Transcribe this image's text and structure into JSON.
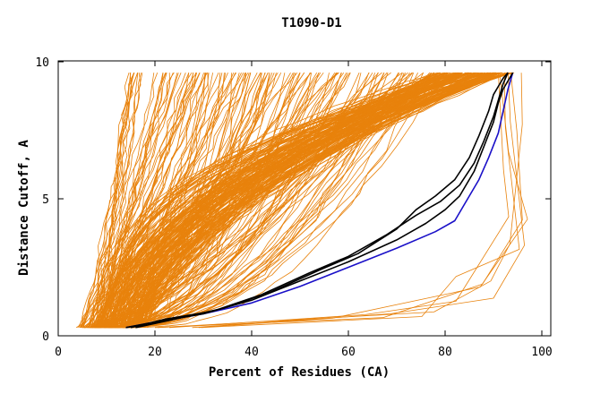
{
  "chart_data": {
    "type": "line",
    "title": "T1090-D1",
    "xlabel": "Percent of Residues (CA)",
    "ylabel": "Distance Cutoff, A",
    "xlim": [
      0,
      100
    ],
    "ylim": [
      0,
      10
    ],
    "x_ticks": [
      "0",
      "20",
      "40",
      "60",
      "80",
      "100"
    ],
    "y_ticks": [
      "0",
      "5",
      "10"
    ],
    "grid": false,
    "legend": "none",
    "colors": {
      "models": "#E8820C",
      "highlight_black": "#000000",
      "highlight_blue": "#1A10C8"
    },
    "series": [
      {
        "color": "#1A10C8",
        "x": [
          14,
          20,
          30,
          40,
          50,
          60,
          70,
          78,
          82,
          84,
          87,
          89,
          91,
          92,
          93,
          94
        ],
        "y": [
          0.3,
          0.5,
          0.8,
          1.2,
          1.8,
          2.5,
          3.2,
          3.8,
          4.2,
          4.8,
          5.7,
          6.5,
          7.4,
          8.2,
          9.0,
          9.6
        ]
      },
      {
        "color": "#000000",
        "x": [
          14,
          20,
          30,
          40,
          50,
          60,
          70,
          76,
          80,
          83,
          86,
          88,
          90,
          91,
          92,
          93,
          94
        ],
        "y": [
          0.3,
          0.5,
          0.8,
          1.3,
          2.0,
          2.7,
          3.5,
          4.1,
          4.6,
          5.1,
          6.0,
          6.9,
          7.8,
          8.5,
          9.0,
          9.3,
          9.6
        ]
      },
      {
        "color": "#000000",
        "x": [
          15,
          22,
          32,
          42,
          52,
          60,
          68,
          74,
          79,
          83,
          86,
          88,
          90,
          91,
          92,
          93
        ],
        "y": [
          0.3,
          0.6,
          0.9,
          1.5,
          2.3,
          2.9,
          3.7,
          4.4,
          4.9,
          5.5,
          6.3,
          7.1,
          8.0,
          8.6,
          9.2,
          9.6
        ]
      },
      {
        "color": "#000000",
        "x": [
          16,
          24,
          34,
          44,
          54,
          62,
          70,
          74,
          78,
          82,
          85,
          87,
          89,
          90,
          91,
          92,
          93
        ],
        "y": [
          0.3,
          0.6,
          1.0,
          1.6,
          2.4,
          3.0,
          3.9,
          4.6,
          5.1,
          5.7,
          6.5,
          7.3,
          8.2,
          8.8,
          9.1,
          9.4,
          9.6
        ]
      }
    ]
  }
}
